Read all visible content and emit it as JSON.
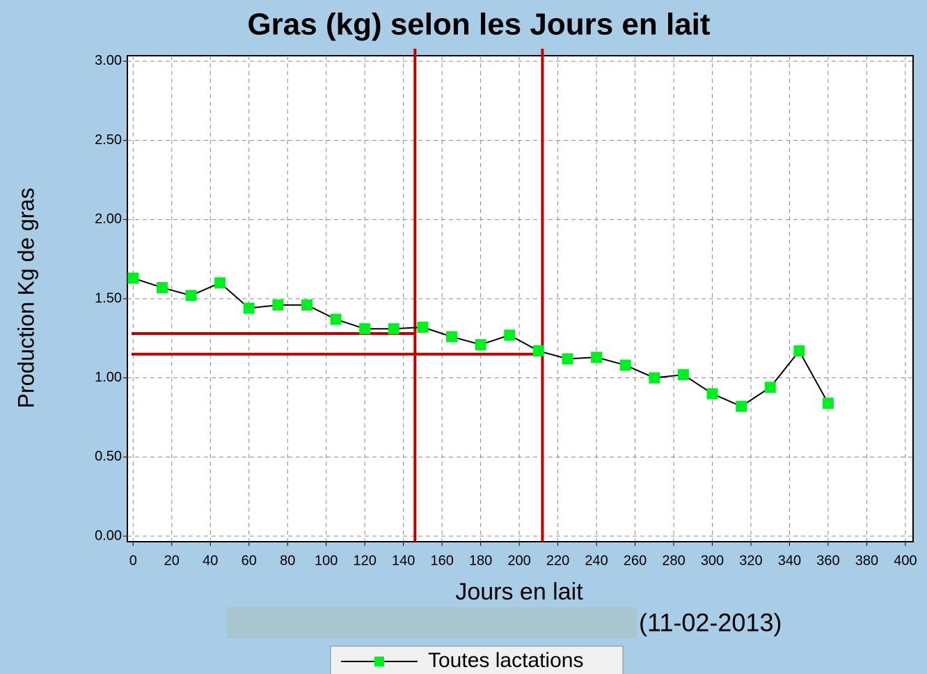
{
  "chart_data": {
    "type": "line",
    "title": "Gras (kg) selon les Jours en lait",
    "subtitle": "(11-02-2013)",
    "x_label": "Jours en lait",
    "y_label": "Production Kg de gras",
    "x": [
      0,
      15,
      30,
      45,
      60,
      75,
      90,
      105,
      120,
      135,
      150,
      165,
      180,
      195,
      210,
      225,
      240,
      255,
      270,
      285,
      300,
      315,
      330,
      345,
      360
    ],
    "series": [
      {
        "name": "Toutes lactations",
        "color": "#00ee22",
        "line_color": "#000000",
        "values": [
          1.63,
          1.57,
          1.52,
          1.6,
          1.44,
          1.46,
          1.46,
          1.37,
          1.31,
          1.31,
          1.32,
          1.26,
          1.21,
          1.27,
          1.17,
          1.12,
          1.13,
          1.08,
          1.0,
          1.02,
          0.9,
          0.82,
          0.94,
          1.17,
          0.84
        ]
      }
    ],
    "markers": [
      {
        "x": 146,
        "y": 1.28
      },
      {
        "x": 212,
        "y": 1.15
      }
    ],
    "marker_color": "#c00000",
    "xlim": [
      -3,
      404
    ],
    "xticks": [
      0,
      20,
      40,
      60,
      80,
      100,
      120,
      140,
      160,
      180,
      200,
      220,
      240,
      260,
      280,
      300,
      320,
      340,
      360,
      380,
      400
    ],
    "ylim": [
      -0.035,
      3.035
    ],
    "yticks": [
      {
        "value": 0,
        "label": "0.00"
      },
      {
        "value": 0.5,
        "label": "0.50"
      },
      {
        "value": 1,
        "label": "1.00"
      },
      {
        "value": 1.5,
        "label": "1.50"
      },
      {
        "value": 2,
        "label": "2.00"
      },
      {
        "value": 2.5,
        "label": "2.50"
      },
      {
        "value": 3,
        "label": "3.00"
      }
    ],
    "grid": true
  }
}
